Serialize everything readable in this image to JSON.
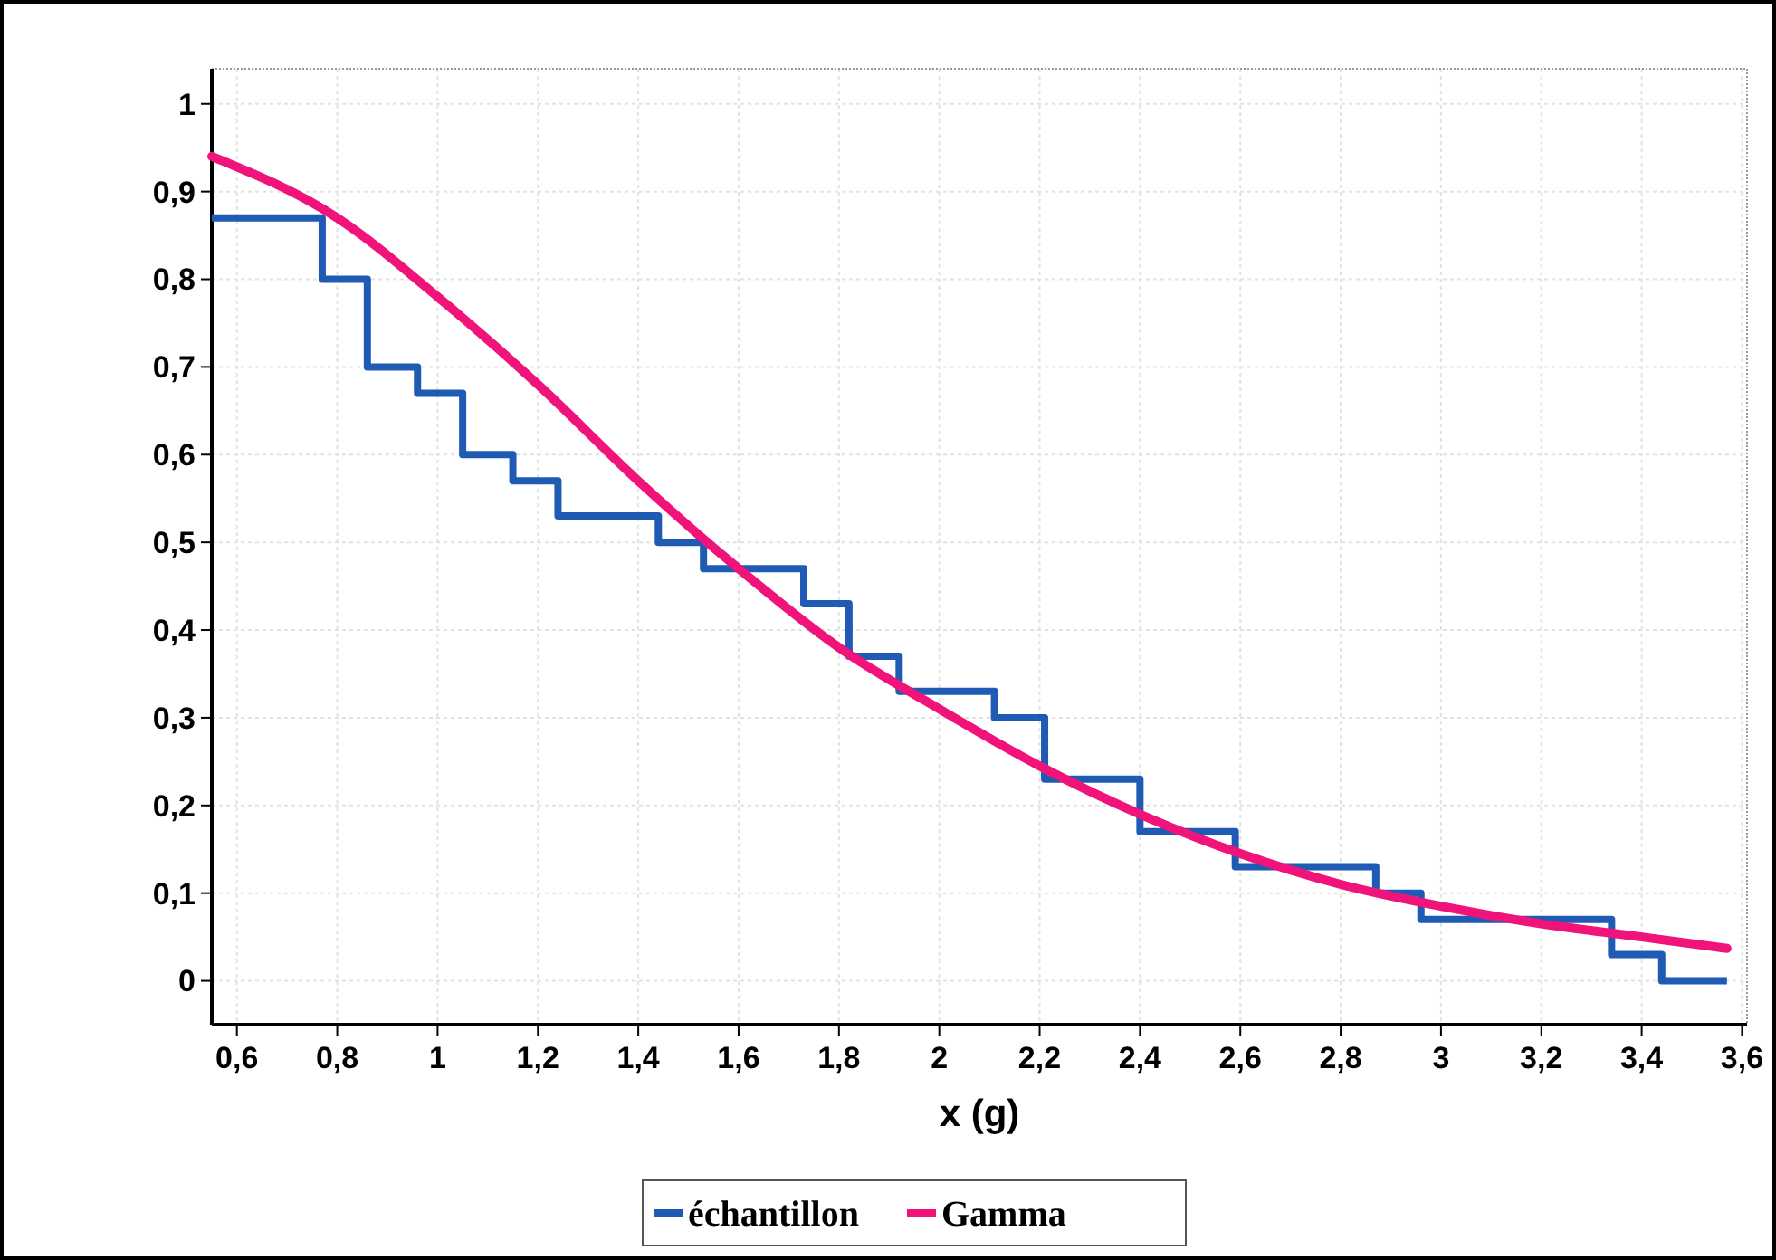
{
  "chart_data": {
    "type": "step",
    "xlabel": "x (g)",
    "xlim": [
      0.55,
      3.61
    ],
    "ylim": [
      -0.05,
      1.04
    ],
    "xticks": [
      {
        "value": 0.6,
        "label": "0,6"
      },
      {
        "value": 0.8,
        "label": "0,8"
      },
      1,
      {
        "value": 1.2,
        "label": "1,2"
      },
      {
        "value": 1.4,
        "label": "1,4"
      },
      {
        "value": 1.6,
        "label": "1,6"
      },
      {
        "value": 1.8,
        "label": "1,8"
      },
      2,
      {
        "value": 2.2,
        "label": "2,2"
      },
      {
        "value": 2.4,
        "label": "2,4"
      },
      {
        "value": 2.6,
        "label": "2,6"
      },
      {
        "value": 2.8,
        "label": "2,8"
      },
      3,
      {
        "value": 3.2,
        "label": "3,2"
      },
      {
        "value": 3.4,
        "label": "3,4"
      },
      {
        "value": 3.6,
        "label": "3,6"
      }
    ],
    "yticks": [
      0,
      {
        "value": 0.1,
        "label": "0,1"
      },
      {
        "value": 0.2,
        "label": "0,2"
      },
      {
        "value": 0.3,
        "label": "0,3"
      },
      {
        "value": 0.4,
        "label": "0,4"
      },
      {
        "value": 0.5,
        "label": "0,5"
      },
      {
        "value": 0.6,
        "label": "0,6"
      },
      {
        "value": 0.7,
        "label": "0,7"
      },
      {
        "value": 0.8,
        "label": "0,8"
      },
      {
        "value": 0.9,
        "label": "0,9"
      },
      1
    ],
    "grid": true,
    "legend": "bottom",
    "series": [
      {
        "name": "échantillon",
        "color": "#1f5bb5",
        "x": [
          0.55,
          0.77,
          0.86,
          0.96,
          1.05,
          1.15,
          1.24,
          1.44,
          1.53,
          1.73,
          1.82,
          1.92,
          2.11,
          2.21,
          2.4,
          2.59,
          2.87,
          2.96,
          3.34,
          3.44,
          3.57
        ],
        "values": [
          0.87,
          0.8,
          0.7,
          0.67,
          0.6,
          0.57,
          0.53,
          0.5,
          0.47,
          0.43,
          0.37,
          0.33,
          0.3,
          0.23,
          0.17,
          0.13,
          0.1,
          0.07,
          0.03,
          0,
          0
        ]
      },
      {
        "name": "Gamma",
        "type": "line",
        "color": "#f0147a",
        "x": [
          0.55,
          0.8,
          1.0,
          1.2,
          1.4,
          1.6,
          1.8,
          2.0,
          2.2,
          2.4,
          2.6,
          2.8,
          3.0,
          3.2,
          3.4,
          3.57
        ],
        "values": [
          0.94,
          0.87,
          0.78,
          0.68,
          0.57,
          0.47,
          0.38,
          0.31,
          0.245,
          0.19,
          0.145,
          0.11,
          0.085,
          0.065,
          0.05,
          0.037
        ]
      }
    ]
  }
}
